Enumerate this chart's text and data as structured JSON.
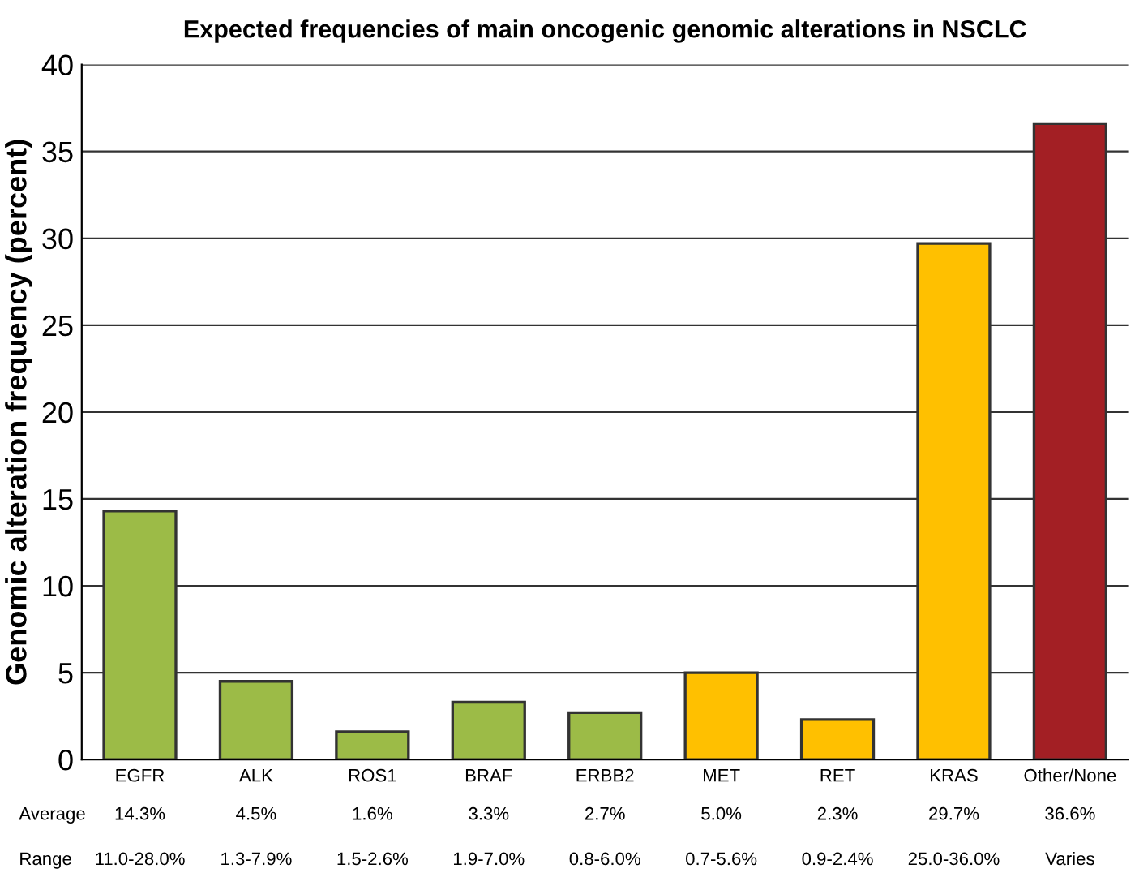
{
  "chart_data": {
    "type": "bar",
    "title": "Expected frequencies of main oncogenic genomic alterations in NSCLC",
    "ylabel": "Genomic alteration frequency (percent)",
    "categories": [
      "EGFR",
      "ALK",
      "ROS1",
      "BRAF",
      "ERBB2",
      "MET",
      "RET",
      "KRAS",
      "Other/None"
    ],
    "values": [
      14.3,
      4.5,
      1.6,
      3.3,
      2.7,
      5.0,
      2.3,
      29.7,
      36.6
    ],
    "colors": [
      "#9cbb47",
      "#9cbb47",
      "#9cbb47",
      "#9cbb47",
      "#9cbb47",
      "#ffc000",
      "#ffc000",
      "#ffc000",
      "#a31f24"
    ],
    "value_labels": [
      "14.3%",
      "4.5%",
      "1.6%",
      "3.3%",
      "2.7%",
      "5.0%",
      "2.3%",
      "29.7%",
      "36.6%"
    ],
    "annotations": [
      "Average",
      "Range",
      "11.0-28.0%",
      "1.3-7.9%",
      "1.5-2.6%",
      "1.9-7.0%",
      "0.8-6.0%",
      "0.7-5.6%",
      "0.9-2.4%",
      "25.0-36.0%",
      "Varies"
    ],
    "ylim": [
      0,
      40
    ],
    "yticks": [
      0,
      5,
      10,
      15,
      20,
      25,
      30,
      35,
      40
    ],
    "grid": "y"
  }
}
